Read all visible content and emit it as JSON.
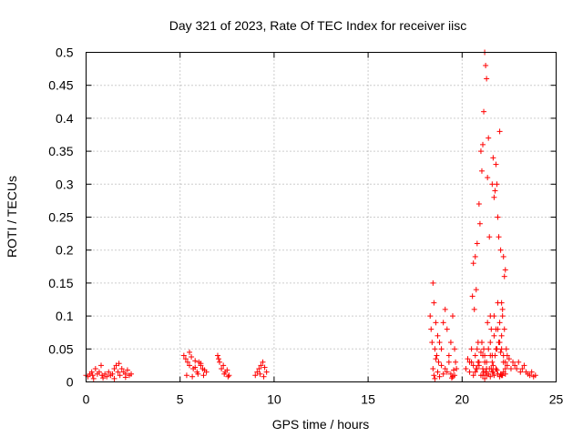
{
  "chart_data": {
    "type": "scatter",
    "title": "Day 321 of 2023, Rate Of TEC Index for receiver iisc",
    "xlabel": "GPS time / hours",
    "ylabel": "ROTI / TECUs",
    "xlim": [
      0,
      25
    ],
    "ylim": [
      0,
      0.5
    ],
    "xticks": [
      0,
      5,
      10,
      15,
      20,
      25
    ],
    "xtick_labels": [
      "0",
      "5",
      "10",
      "15",
      "20",
      "25"
    ],
    "yticks": [
      0,
      0.05,
      0.1,
      0.15,
      0.2,
      0.25,
      0.3,
      0.35,
      0.4,
      0.45,
      0.5
    ],
    "ytick_labels": [
      "0",
      "0.05",
      "0.1",
      "0.15",
      "0.2",
      "0.25",
      "0.3",
      "0.35",
      "0.4",
      "0.45",
      "0.5"
    ],
    "grid": true,
    "marker": "+",
    "color": "#ff0000",
    "series": [
      {
        "name": "ROTI",
        "x": [
          0.0,
          0.1,
          0.2,
          0.3,
          0.35,
          0.5,
          0.6,
          0.7,
          0.8,
          0.85,
          1.0,
          1.1,
          1.2,
          1.3,
          1.4,
          1.5,
          1.6,
          1.7,
          1.75,
          1.8,
          1.9,
          2.0,
          2.1,
          2.2,
          2.3,
          2.4,
          0.4,
          0.9,
          1.5,
          2.1,
          5.2,
          5.3,
          5.4,
          5.5,
          5.6,
          5.7,
          5.8,
          5.9,
          6.0,
          6.1,
          6.2,
          6.3,
          6.4,
          5.35,
          5.65,
          5.95,
          6.25,
          5.5,
          5.8,
          6.1,
          7.0,
          7.1,
          7.2,
          7.3,
          7.4,
          7.5,
          7.6,
          7.05,
          7.35,
          7.55,
          9.0,
          9.1,
          9.2,
          9.3,
          9.4,
          9.5,
          9.6,
          9.25,
          9.45,
          18.3,
          18.35,
          18.4,
          18.45,
          18.5,
          18.55,
          18.6,
          18.65,
          18.7,
          18.75,
          18.8,
          18.9,
          19.0,
          19.1,
          19.2,
          19.3,
          19.4,
          19.5,
          19.6,
          19.65,
          19.7,
          18.45,
          18.5,
          18.6,
          18.7,
          18.9,
          19.1,
          19.3,
          19.4,
          19.5,
          19.55,
          19.6,
          18.55,
          18.8,
          19.0,
          19.2,
          19.45,
          20.2,
          20.3,
          20.4,
          20.5,
          20.6,
          20.7,
          20.8,
          20.9,
          21.0,
          21.1,
          21.2,
          21.3,
          21.4,
          21.5,
          21.6,
          21.7,
          21.8,
          21.9,
          22.0,
          22.1,
          22.2,
          22.3,
          22.4,
          22.5,
          22.6,
          22.7,
          22.8,
          22.9,
          23.0,
          23.1,
          23.2,
          23.3,
          23.4,
          23.5,
          23.6,
          23.7,
          23.8,
          23.9,
          20.4,
          20.5,
          20.55,
          20.6,
          20.65,
          20.7,
          20.75,
          20.8,
          20.85,
          20.9,
          20.95,
          21.0,
          21.05,
          21.1,
          21.15,
          21.2,
          21.25,
          21.3,
          21.35,
          21.4,
          21.45,
          21.5,
          21.55,
          21.6,
          21.65,
          21.7,
          21.75,
          21.8,
          21.85,
          21.9,
          21.95,
          22.0,
          22.05,
          22.1,
          22.15,
          22.2,
          22.25,
          22.3,
          20.6,
          20.7,
          20.75,
          20.8,
          20.85,
          20.9,
          21.0,
          21.05,
          21.1,
          21.15,
          21.2,
          21.25,
          21.3,
          21.35,
          21.5,
          21.55,
          21.6,
          21.65,
          21.7,
          21.75,
          21.8,
          21.85,
          21.9,
          21.95,
          22.0,
          22.05,
          22.1,
          22.15,
          22.2,
          22.25,
          22.3,
          22.35,
          22.4,
          21.1,
          21.15,
          21.2,
          21.3,
          21.4,
          21.5,
          21.6,
          21.7,
          21.8,
          21.9,
          22.0,
          22.1,
          22.2,
          22.3,
          21.25,
          21.45,
          21.65,
          21.85,
          22.05,
          22.15
        ],
        "y": [
          0.01,
          0.008,
          0.012,
          0.015,
          0.01,
          0.02,
          0.012,
          0.015,
          0.025,
          0.01,
          0.012,
          0.008,
          0.015,
          0.01,
          0.012,
          0.02,
          0.025,
          0.015,
          0.028,
          0.01,
          0.02,
          0.015,
          0.012,
          0.018,
          0.01,
          0.012,
          0.005,
          0.006,
          0.005,
          0.007,
          0.04,
          0.035,
          0.03,
          0.025,
          0.038,
          0.02,
          0.032,
          0.015,
          0.03,
          0.025,
          0.02,
          0.018,
          0.015,
          0.01,
          0.008,
          0.012,
          0.01,
          0.045,
          0.022,
          0.028,
          0.04,
          0.03,
          0.02,
          0.025,
          0.015,
          0.018,
          0.01,
          0.035,
          0.012,
          0.008,
          0.01,
          0.015,
          0.02,
          0.025,
          0.03,
          0.022,
          0.015,
          0.012,
          0.008,
          0.1,
          0.08,
          0.06,
          0.15,
          0.12,
          0.05,
          0.09,
          0.04,
          0.07,
          0.03,
          0.06,
          0.05,
          0.09,
          0.11,
          0.08,
          0.04,
          0.06,
          0.1,
          0.05,
          0.03,
          0.02,
          0.02,
          0.01,
          0.035,
          0.015,
          0.025,
          0.02,
          0.03,
          0.012,
          0.008,
          0.018,
          0.01,
          0.005,
          0.008,
          0.012,
          0.015,
          0.006,
          0.02,
          0.035,
          0.015,
          0.03,
          0.025,
          0.04,
          0.05,
          0.03,
          0.045,
          0.02,
          0.04,
          0.03,
          0.05,
          0.06,
          0.04,
          0.07,
          0.05,
          0.08,
          0.06,
          0.05,
          0.04,
          0.03,
          0.04,
          0.035,
          0.02,
          0.03,
          0.025,
          0.02,
          0.03,
          0.015,
          0.02,
          0.025,
          0.015,
          0.012,
          0.01,
          0.015,
          0.008,
          0.01,
          0.03,
          0.05,
          0.13,
          0.18,
          0.11,
          0.19,
          0.14,
          0.21,
          0.06,
          0.27,
          0.24,
          0.35,
          0.32,
          0.36,
          0.41,
          0.5,
          0.48,
          0.46,
          0.31,
          0.37,
          0.22,
          0.1,
          0.08,
          0.3,
          0.34,
          0.28,
          0.29,
          0.33,
          0.3,
          0.25,
          0.22,
          0.38,
          0.2,
          0.12,
          0.1,
          0.19,
          0.16,
          0.17,
          0.01,
          0.015,
          0.02,
          0.02,
          0.03,
          0.025,
          0.01,
          0.06,
          0.04,
          0.05,
          0.03,
          0.015,
          0.02,
          0.09,
          0.04,
          0.02,
          0.03,
          0.015,
          0.1,
          0.04,
          0.08,
          0.05,
          0.12,
          0.06,
          0.09,
          0.045,
          0.07,
          0.11,
          0.03,
          0.08,
          0.02,
          0.05,
          0.025,
          0.01,
          0.015,
          0.005,
          0.01,
          0.012,
          0.008,
          0.015,
          0.01,
          0.02,
          0.012,
          0.008,
          0.01,
          0.015,
          0.012,
          0.015,
          0.02,
          0.025,
          0.018,
          0.012,
          0.01
        ]
      }
    ]
  }
}
